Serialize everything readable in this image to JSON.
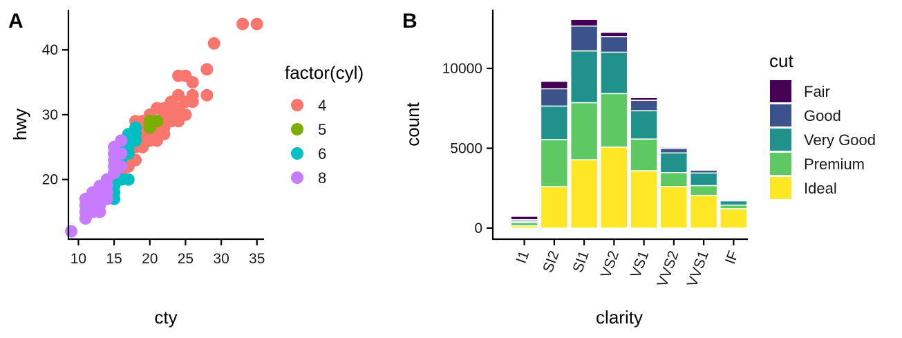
{
  "panels": {
    "a": {
      "tag": "A"
    },
    "b": {
      "tag": "B"
    }
  },
  "chart_data": [
    {
      "type": "scatter",
      "xlabel": "cty",
      "ylabel": "hwy",
      "xlim": [
        8.7,
        35.8
      ],
      "ylim": [
        10.9,
        46.1
      ],
      "x_ticks": [
        10,
        15,
        20,
        25,
        30,
        35
      ],
      "y_ticks": [
        20,
        30,
        40
      ],
      "legend": {
        "title": "factor(cyl)",
        "placement": "right"
      },
      "series": [
        {
          "name": "4",
          "color": "#F8766D",
          "points": [
            [
              35,
              44
            ],
            [
              33,
              44
            ],
            [
              29,
              41
            ],
            [
              28,
              37
            ],
            [
              28,
              33
            ],
            [
              26,
              35
            ],
            [
              26,
              32
            ],
            [
              25,
              36
            ],
            [
              24,
              36
            ],
            [
              24,
              33
            ],
            [
              25,
              32
            ],
            [
              23,
              31
            ],
            [
              23,
              30
            ],
            [
              22,
              30
            ],
            [
              21,
              31
            ],
            [
              21,
              29
            ],
            [
              20,
              30
            ],
            [
              20,
              29
            ],
            [
              19,
              29
            ],
            [
              19,
              27
            ],
            [
              18,
              29
            ],
            [
              18,
              27
            ],
            [
              18,
              26
            ],
            [
              17,
              25
            ],
            [
              17,
              26
            ],
            [
              19,
              26
            ],
            [
              20,
              27
            ],
            [
              21,
              26
            ],
            [
              22,
              27
            ],
            [
              22,
              28
            ],
            [
              21,
              28
            ],
            [
              20,
              28
            ],
            [
              21,
              27
            ],
            [
              22,
              29
            ],
            [
              23,
              29
            ],
            [
              24,
              29
            ],
            [
              24,
              31
            ],
            [
              25,
              30
            ],
            [
              24,
              30
            ],
            [
              23,
              32
            ],
            [
              22,
              31
            ],
            [
              26,
              33
            ],
            [
              18,
              25
            ],
            [
              17,
              24
            ],
            [
              19,
              25
            ],
            [
              16,
              23
            ],
            [
              17,
              22
            ],
            [
              18,
              23
            ],
            [
              15,
              20
            ],
            [
              16,
              21
            ],
            [
              17,
              23
            ],
            [
              20,
              26
            ],
            [
              19,
              28
            ]
          ]
        },
        {
          "name": "5",
          "color": "#7CAE00",
          "points": [
            [
              20,
              28
            ],
            [
              20,
              29
            ],
            [
              21,
              29
            ],
            [
              21,
              29
            ]
          ]
        },
        {
          "name": "6",
          "color": "#00BFC4",
          "points": [
            [
              18,
              26
            ],
            [
              18,
              27
            ],
            [
              17,
              26
            ],
            [
              17,
              27
            ],
            [
              16,
              26
            ],
            [
              16,
              25
            ],
            [
              16,
              24
            ],
            [
              16,
              23
            ],
            [
              15,
              22
            ],
            [
              15,
              24
            ],
            [
              15,
              25
            ],
            [
              17,
              25
            ],
            [
              17,
              24
            ],
            [
              16,
              20
            ],
            [
              15,
              19
            ],
            [
              15,
              18
            ],
            [
              15,
              17
            ],
            [
              14,
              20
            ],
            [
              15,
              21
            ],
            [
              17,
              20
            ],
            [
              18,
              28
            ]
          ]
        },
        {
          "name": "8",
          "color": "#C77CFF",
          "points": [
            [
              16,
              26
            ],
            [
              16,
              24
            ],
            [
              15,
              25
            ],
            [
              15,
              23
            ],
            [
              15,
              22
            ],
            [
              15,
              21
            ],
            [
              14,
              20
            ],
            [
              14,
              19
            ],
            [
              14,
              18
            ],
            [
              13,
              19
            ],
            [
              13,
              18
            ],
            [
              13,
              17
            ],
            [
              12,
              18
            ],
            [
              12,
              17
            ],
            [
              12,
              16
            ],
            [
              11,
              17
            ],
            [
              11,
              16
            ],
            [
              11,
              15
            ],
            [
              11,
              14
            ],
            [
              12,
              15
            ],
            [
              9,
              12
            ],
            [
              13,
              16
            ],
            [
              14,
              17
            ],
            [
              13,
              15
            ],
            [
              16,
              22
            ],
            [
              15,
              24
            ],
            [
              11,
              14
            ]
          ]
        }
      ]
    },
    {
      "type": "bar",
      "stacked": true,
      "xlabel": "clarity",
      "ylabel": "count",
      "ylim": [
        0,
        13500
      ],
      "y_ticks": [
        0,
        5000,
        10000
      ],
      "categories": [
        "I1",
        "SI2",
        "SI1",
        "VS2",
        "VS1",
        "VVS2",
        "VVS1",
        "IF"
      ],
      "legend": {
        "title": "cut",
        "placement": "right"
      },
      "series": [
        {
          "name": "Ideal",
          "color": "#FDE725",
          "values": [
            146,
            2598,
            4282,
            5071,
            3589,
            2606,
            2047,
            1212
          ]
        },
        {
          "name": "Premium",
          "color": "#5EC962",
          "values": [
            205,
            2949,
            3575,
            3357,
            1989,
            870,
            616,
            230
          ]
        },
        {
          "name": "Very Good",
          "color": "#21918C",
          "values": [
            84,
            2100,
            3240,
            2591,
            1775,
            1235,
            789,
            268
          ]
        },
        {
          "name": "Good",
          "color": "#3B528B",
          "values": [
            96,
            1081,
            1560,
            978,
            648,
            286,
            186,
            71
          ]
        },
        {
          "name": "Fair",
          "color": "#440154",
          "values": [
            210,
            466,
            408,
            261,
            170,
            69,
            17,
            9
          ]
        }
      ],
      "legend_order": [
        "Fair",
        "Good",
        "Very Good",
        "Premium",
        "Ideal"
      ]
    }
  ]
}
